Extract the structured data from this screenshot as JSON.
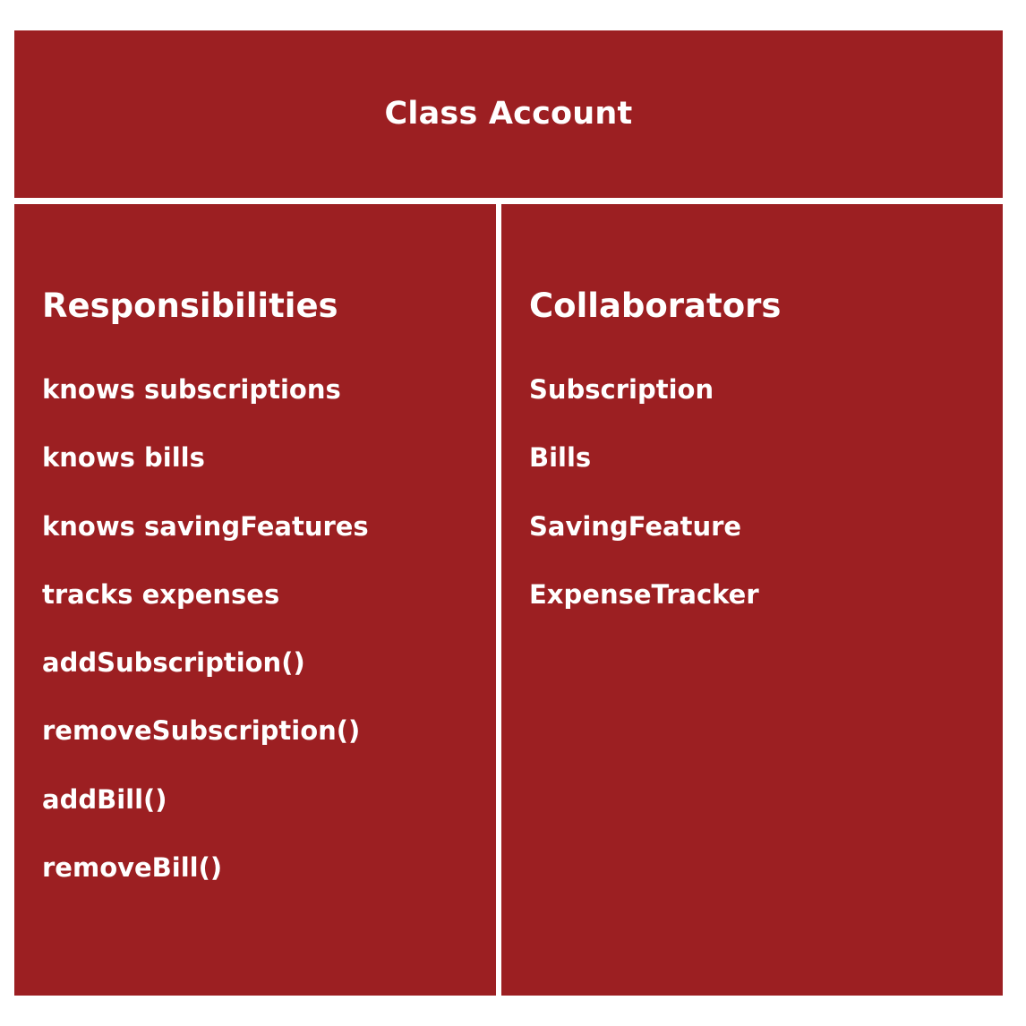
{
  "colors": {
    "panel": "#9c1f22",
    "text": "#ffffff",
    "divider": "#ffffff"
  },
  "class_card": {
    "title": "Class Account",
    "responsibilities": {
      "heading": "Responsibilities",
      "items": [
        "knows subscriptions",
        "knows bills",
        "knows savingFeatures",
        "tracks expenses",
        "addSubscription()",
        "removeSubscription()",
        "addBill()",
        "removeBill()"
      ]
    },
    "collaborators": {
      "heading": "Collaborators",
      "items": [
        "Subscription",
        "Bills",
        "SavingFeature",
        "ExpenseTracker"
      ]
    }
  }
}
